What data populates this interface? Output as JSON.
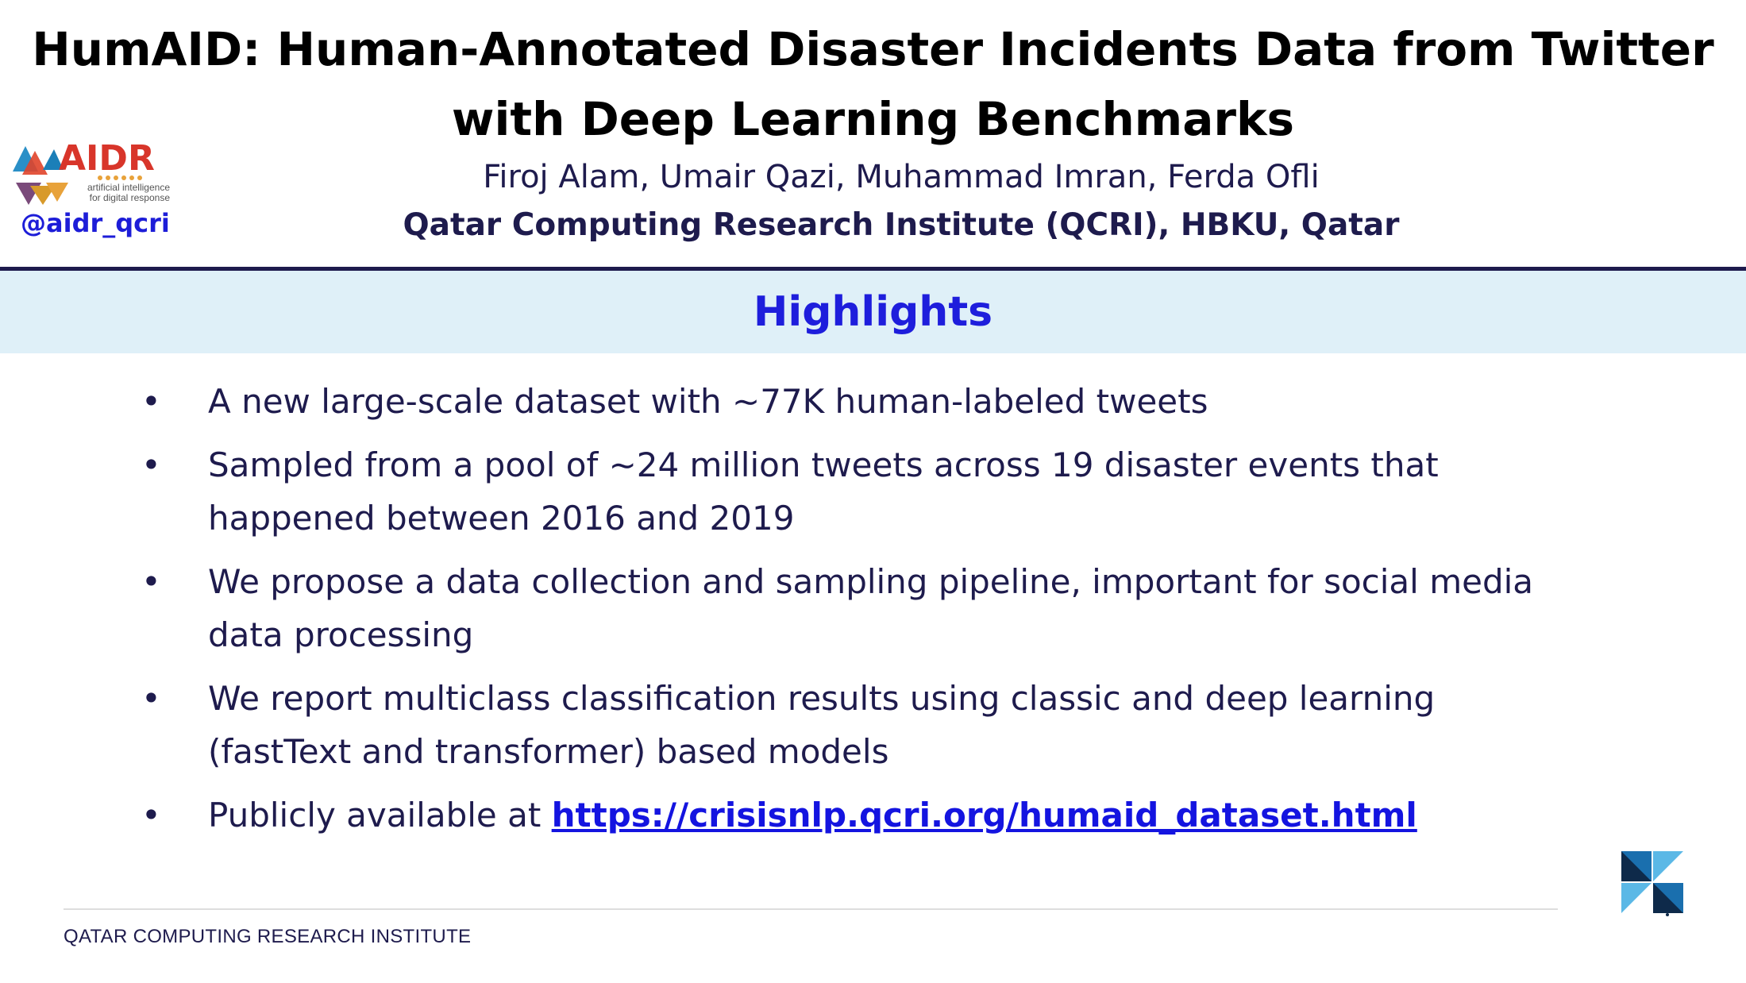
{
  "header": {
    "title_line1": "HumAID: Human-Annotated Disaster Incidents Data from Twitter",
    "title_line2": "with Deep Learning Benchmarks",
    "authors": "Firoj Alam, Umair Qazi, Muhammad Imran, Ferda Ofli",
    "affiliation": "Qatar Computing Research Institute (QCRI), HBKU, Qatar"
  },
  "logo": {
    "text": "AIDR",
    "tagline": "artificial intelligence for digital response",
    "handle": "@aidr_qcri"
  },
  "section": {
    "heading": "Highlights"
  },
  "bullets": [
    {
      "text": "A new large-scale dataset with ∼77K human-labeled tweets"
    },
    {
      "text": "Sampled from a pool of ∼24 million tweets across 19 disaster events that happened between 2016 and 2019"
    },
    {
      "text": "We propose a data collection and sampling pipeline, important for social media data processing"
    },
    {
      "text": "We report multiclass classification results using classic and deep learning (fastText and transformer) based models"
    },
    {
      "text": "Publicly available at ",
      "link": "https://crisisnlp.qcri.org/humaid_dataset.html"
    }
  ],
  "bullet_symbol": "•",
  "footer": {
    "text": "QATAR COMPUTING RESEARCH INSTITUTE"
  },
  "colors": {
    "navy": "#1e1b4d",
    "blue": "#1e1edc",
    "band": "#dff0f8"
  }
}
